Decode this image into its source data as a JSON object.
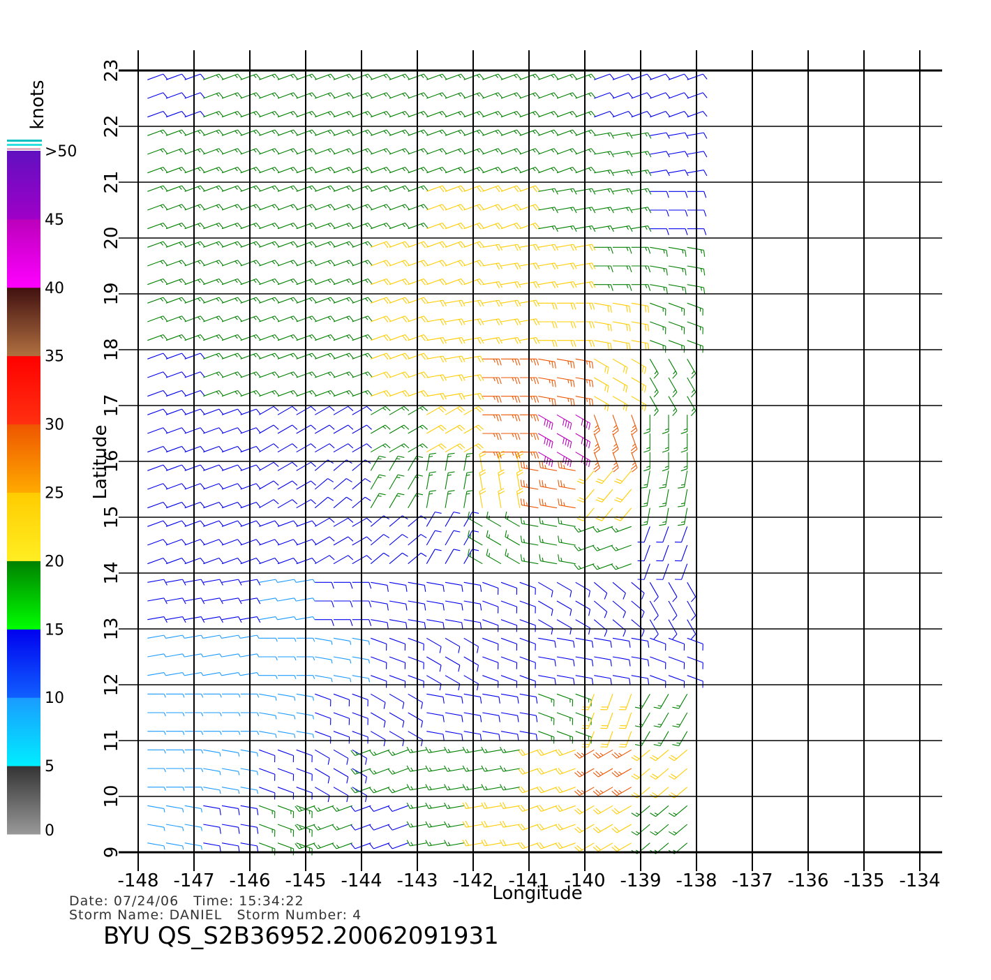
{
  "title": "BYU QS_S2B36952.20062091931",
  "date_line": "Date: 07/24/06   Time: 15:34:22",
  "storm_line": "Storm Name: DANIEL   Storm Number: 4",
  "x_label": "Longitude",
  "y_label": "Latitude",
  "xlim": [
    -148,
    -134
  ],
  "ylim": [
    9,
    23
  ],
  "xticks": [
    -148,
    -147,
    -146,
    -145,
    -144,
    -143,
    -142,
    -141,
    -140,
    -139,
    -138,
    -137,
    -136,
    -135,
    -134
  ],
  "yticks": [
    9,
    10,
    11,
    12,
    13,
    14,
    15,
    16,
    17,
    18,
    19,
    20,
    21,
    22,
    23
  ],
  "grid": true,
  "colorbar": {
    "label": "knots",
    "ticks": [
      0,
      5,
      10,
      15,
      20,
      25,
      30,
      35,
      40,
      45,
      {
        "value": 50,
        "label": ">50"
      }
    ],
    "colors": [
      [
        "#999999",
        "#333333"
      ],
      [
        "#00eeff",
        "#1a9bff"
      ],
      [
        "#1060ff",
        "#0000ee"
      ],
      [
        "#00ff00",
        "#008000"
      ],
      [
        "#ffee22",
        "#ffcc00"
      ],
      [
        "#ffaa00",
        "#ee5500"
      ],
      [
        "#ff3010",
        "#ff0000"
      ],
      [
        "#b07040",
        "#401010"
      ],
      [
        "#ff00ff",
        "#bb00bb"
      ],
      [
        "#a000c8",
        "#6010c0"
      ]
    ]
  },
  "wind": {
    "lat": [
      9.5,
      10.5,
      11.5,
      12.5,
      13.5,
      14.5,
      15.5,
      16.5,
      17.5,
      18.5,
      19.5,
      20.5,
      21.5,
      22.5
    ],
    "lon": [
      -147.5,
      -146.5,
      -145.5,
      -144.5,
      -143.5,
      -142.5,
      -141.5,
      -140.5,
      -139.5,
      -138.5
    ],
    "speed": [
      [
        8,
        12,
        17,
        18,
        12,
        15,
        20,
        24,
        20,
        18
      ],
      [
        8,
        8,
        12,
        14,
        15,
        17,
        18,
        22,
        25,
        22
      ],
      [
        7,
        7,
        9,
        10,
        11,
        13,
        14,
        16,
        20,
        18
      ],
      [
        6,
        7,
        8,
        9,
        10,
        11,
        12,
        12,
        12,
        12
      ],
      [
        10,
        10,
        9,
        10,
        11,
        12,
        13,
        13,
        12,
        12
      ],
      [
        12,
        12,
        12,
        12,
        13,
        14,
        16,
        18,
        16,
        14
      ],
      [
        12,
        12,
        12,
        13,
        15,
        18,
        22,
        28,
        24,
        18
      ],
      [
        13,
        13,
        13,
        14,
        16,
        20,
        28,
        40,
        28,
        18
      ],
      [
        14,
        15,
        16,
        18,
        20,
        22,
        25,
        27,
        22,
        18
      ],
      [
        15,
        16,
        17,
        19,
        20,
        21,
        22,
        22,
        20,
        17
      ],
      [
        16,
        17,
        17,
        18,
        20,
        21,
        21,
        21,
        19,
        17
      ],
      [
        17,
        17,
        17,
        18,
        19,
        20,
        20,
        18,
        17,
        14
      ],
      [
        16,
        16,
        17,
        17,
        18,
        19,
        18,
        17,
        15,
        12
      ],
      [
        13,
        16,
        17,
        17,
        18,
        18,
        17,
        16,
        14,
        12
      ]
    ],
    "direction": [
      [
        100,
        100,
        110,
        250,
        250,
        260,
        260,
        250,
        240,
        230
      ],
      [
        90,
        100,
        110,
        120,
        250,
        260,
        260,
        250,
        240,
        230
      ],
      [
        90,
        90,
        100,
        110,
        120,
        100,
        100,
        110,
        200,
        210
      ],
      [
        80,
        80,
        90,
        100,
        110,
        120,
        110,
        100,
        100,
        110
      ],
      [
        80,
        80,
        80,
        90,
        100,
        100,
        110,
        120,
        130,
        150
      ],
      [
        70,
        70,
        70,
        60,
        50,
        30,
        300,
        280,
        250,
        200
      ],
      [
        70,
        70,
        60,
        50,
        30,
        10,
        350,
        280,
        220,
        190
      ],
      [
        70,
        70,
        60,
        60,
        60,
        60,
        90,
        120,
        160,
        180
      ],
      [
        70,
        70,
        70,
        70,
        70,
        80,
        90,
        100,
        120,
        150
      ],
      [
        70,
        70,
        70,
        70,
        70,
        80,
        80,
        90,
        100,
        110
      ],
      [
        70,
        70,
        70,
        70,
        70,
        70,
        80,
        80,
        90,
        100
      ],
      [
        70,
        70,
        70,
        70,
        70,
        70,
        70,
        80,
        80,
        90
      ],
      [
        70,
        70,
        70,
        70,
        70,
        70,
        70,
        70,
        80,
        80
      ],
      [
        70,
        70,
        70,
        70,
        70,
        70,
        70,
        70,
        70,
        70
      ]
    ]
  }
}
